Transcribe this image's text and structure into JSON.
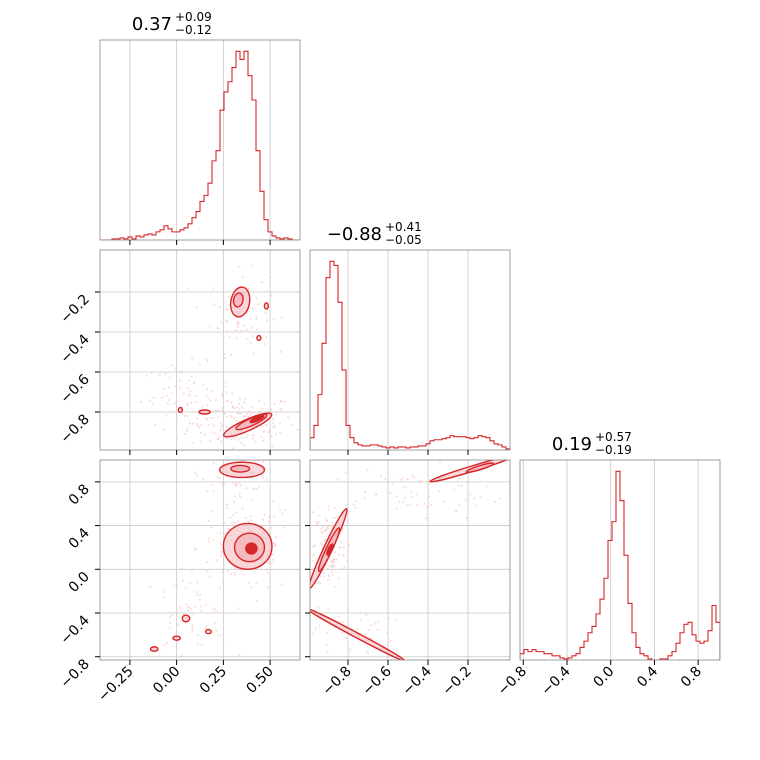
{
  "chart_data": {
    "type": "corner",
    "color": "#d62728",
    "fill_color": "#f4b6bb",
    "scatter_color": "#f7c6cc",
    "grid": true,
    "params": [
      {
        "title": {
          "value": "0.37",
          "plus": "+0.09",
          "minus": "−0.12"
        },
        "range": [
          -0.41,
          0.66
        ],
        "ticks": [
          -0.25,
          0.0,
          0.25,
          0.5
        ],
        "tick_labels": [
          "−0.25",
          "0.00",
          "0.25",
          "0.50"
        ]
      },
      {
        "title": {
          "value": "−0.88",
          "plus": "+0.41",
          "minus": "−0.05"
        },
        "range": [
          -0.99,
          0.01
        ],
        "ticks": [
          -0.8,
          -0.6,
          -0.4,
          -0.2
        ],
        "tick_labels": [
          "−0.8",
          "−0.6",
          "−0.4",
          "−0.2"
        ]
      },
      {
        "title": {
          "value": "0.19",
          "plus": "+0.57",
          "minus": "−0.19"
        },
        "range": [
          -0.83,
          1.0
        ],
        "ticks": [
          -0.8,
          -0.4,
          0.0,
          0.4,
          0.8
        ],
        "tick_labels": [
          "−0.8",
          "−0.4",
          "0.0",
          "0.4",
          "0.8"
        ]
      }
    ],
    "histograms": [
      {
        "param": 0,
        "bin_start": -0.41,
        "bin_width": 0.0214,
        "values": [
          0,
          0,
          0,
          0.5,
          0.5,
          1,
          0.5,
          1.5,
          0.5,
          2,
          1.5,
          2.5,
          3,
          2.5,
          4,
          5,
          7,
          5.5,
          4,
          4,
          5,
          6,
          8,
          11,
          14,
          19,
          22,
          28,
          39,
          44,
          64,
          73,
          78,
          85,
          93,
          89,
          93,
          81,
          69,
          44,
          24,
          10,
          4,
          2,
          1,
          0.5,
          1,
          0.5,
          0,
          0
        ]
      },
      {
        "param": 1,
        "bin_start": -0.99,
        "bin_width": 0.02,
        "values": [
          6,
          12,
          27,
          52,
          84,
          92,
          90,
          72,
          39,
          12,
          6,
          3.5,
          2.5,
          2,
          2,
          2.5,
          2.5,
          2,
          1.5,
          1,
          1.5,
          1,
          1.5,
          1.5,
          1,
          1.5,
          1.5,
          2,
          2,
          3,
          4.5,
          5,
          5,
          5.5,
          6,
          7,
          6.5,
          6.5,
          6.5,
          6,
          5.5,
          6,
          7,
          6.5,
          6,
          4.5,
          3,
          2.5,
          1.5,
          0.5
        ]
      },
      {
        "param": 2,
        "bin_start": -0.83,
        "bin_width": 0.0366,
        "values": [
          3,
          5,
          4,
          5,
          4,
          4,
          3,
          3,
          2,
          2,
          1,
          0.5,
          1,
          2,
          3,
          6,
          9,
          13,
          16,
          22,
          29,
          39,
          57,
          66,
          90,
          76,
          50,
          27,
          13,
          6,
          3,
          2,
          0.5,
          0,
          0,
          0.5,
          0.5,
          2,
          4,
          8,
          13,
          17,
          18,
          12,
          9,
          8,
          9,
          14,
          26,
          18
        ]
      }
    ],
    "pairs": [
      {
        "x_param": 0,
        "y_param": 1,
        "regions": [
          {
            "level": 3,
            "cx": 0.38,
            "cy": -0.865,
            "rx": 0.14,
            "ry": 0.028,
            "angle": -24
          },
          {
            "level": 2,
            "cx": 0.4,
            "cy": -0.85,
            "rx": 0.09,
            "ry": 0.018,
            "angle": -24
          },
          {
            "level": 1,
            "cx": 0.43,
            "cy": -0.835,
            "rx": 0.04,
            "ry": 0.01,
            "angle": -24
          },
          {
            "level": 3,
            "cx": 0.34,
            "cy": -0.25,
            "rx": 0.05,
            "ry": 0.075,
            "angle": 10
          },
          {
            "level": 2,
            "cx": 0.33,
            "cy": -0.24,
            "rx": 0.025,
            "ry": 0.035,
            "angle": 10
          },
          {
            "level": 3,
            "cx": 0.02,
            "cy": -0.79,
            "rx": 0.01,
            "ry": 0.012,
            "angle": 0
          },
          {
            "level": 3,
            "cx": 0.15,
            "cy": -0.8,
            "rx": 0.03,
            "ry": 0.01,
            "angle": 0
          },
          {
            "level": 3,
            "cx": 0.48,
            "cy": -0.27,
            "rx": 0.01,
            "ry": 0.015,
            "angle": 0
          },
          {
            "level": 3,
            "cx": 0.44,
            "cy": -0.43,
            "rx": 0.01,
            "ry": 0.012,
            "angle": 0
          }
        ],
        "scatter": [
          {
            "cx": 0.35,
            "cy": -0.85,
            "sx": 0.14,
            "sy": 0.07,
            "n": 160
          },
          {
            "cx": 0.34,
            "cy": -0.3,
            "sx": 0.08,
            "sy": 0.1,
            "n": 90
          },
          {
            "cx": 0.05,
            "cy": -0.72,
            "sx": 0.12,
            "sy": 0.08,
            "n": 70
          }
        ]
      },
      {
        "x_param": 0,
        "y_param": 2,
        "regions": [
          {
            "level": 3,
            "cx": 0.38,
            "cy": 0.21,
            "rx": 0.13,
            "ry": 0.21,
            "angle": 0
          },
          {
            "level": 2,
            "cx": 0.39,
            "cy": 0.2,
            "rx": 0.08,
            "ry": 0.13,
            "angle": 0
          },
          {
            "level": 1,
            "cx": 0.4,
            "cy": 0.19,
            "rx": 0.03,
            "ry": 0.05,
            "angle": 0
          },
          {
            "level": 3,
            "cx": 0.35,
            "cy": 0.91,
            "rx": 0.12,
            "ry": 0.07,
            "angle": 0
          },
          {
            "level": 2,
            "cx": 0.34,
            "cy": 0.92,
            "rx": 0.05,
            "ry": 0.03,
            "angle": 0
          },
          {
            "level": 3,
            "cx": 0.05,
            "cy": -0.45,
            "rx": 0.02,
            "ry": 0.03,
            "angle": 0
          },
          {
            "level": 3,
            "cx": -0.12,
            "cy": -0.73,
            "rx": 0.02,
            "ry": 0.02,
            "angle": 0
          },
          {
            "level": 3,
            "cx": 0.0,
            "cy": -0.63,
            "rx": 0.02,
            "ry": 0.015,
            "angle": 0
          },
          {
            "level": 3,
            "cx": 0.17,
            "cy": -0.57,
            "rx": 0.015,
            "ry": 0.015,
            "angle": 0
          }
        ],
        "scatter": [
          {
            "cx": 0.37,
            "cy": 0.2,
            "sx": 0.13,
            "sy": 0.22,
            "n": 150
          },
          {
            "cx": 0.33,
            "cy": 0.88,
            "sx": 0.1,
            "sy": 0.08,
            "n": 60
          },
          {
            "cx": 0.05,
            "cy": -0.45,
            "sx": 0.12,
            "sy": 0.2,
            "n": 60
          }
        ]
      },
      {
        "x_param": 1,
        "y_param": 2,
        "regions": [
          {
            "level": 3,
            "cx": -0.9,
            "cy": 0.19,
            "rx": 0.22,
            "ry": 0.038,
            "angle": -65
          },
          {
            "level": 2,
            "cx": -0.895,
            "cy": 0.18,
            "rx": 0.12,
            "ry": 0.028,
            "angle": -65
          },
          {
            "level": 1,
            "cx": -0.89,
            "cy": 0.18,
            "rx": 0.03,
            "ry": 0.012,
            "angle": -65
          },
          {
            "level": 3,
            "cx": -0.76,
            "cy": -0.6,
            "rx": 0.28,
            "ry": 0.022,
            "angle": 28
          },
          {
            "level": 3,
            "cx": -0.18,
            "cy": 0.92,
            "rx": 0.22,
            "ry": 0.025,
            "angle": -17
          },
          {
            "level": 2,
            "cx": -0.14,
            "cy": 0.93,
            "rx": 0.07,
            "ry": 0.012,
            "angle": -17
          }
        ],
        "scatter": [
          {
            "cx": -0.89,
            "cy": 0.2,
            "sx": 0.04,
            "sy": 0.2,
            "n": 120
          },
          {
            "cx": -0.5,
            "cy": 0.7,
            "sx": 0.25,
            "sy": 0.12,
            "n": 70
          },
          {
            "cx": -0.78,
            "cy": -0.58,
            "sx": 0.1,
            "sy": 0.12,
            "n": 40
          }
        ]
      }
    ]
  }
}
